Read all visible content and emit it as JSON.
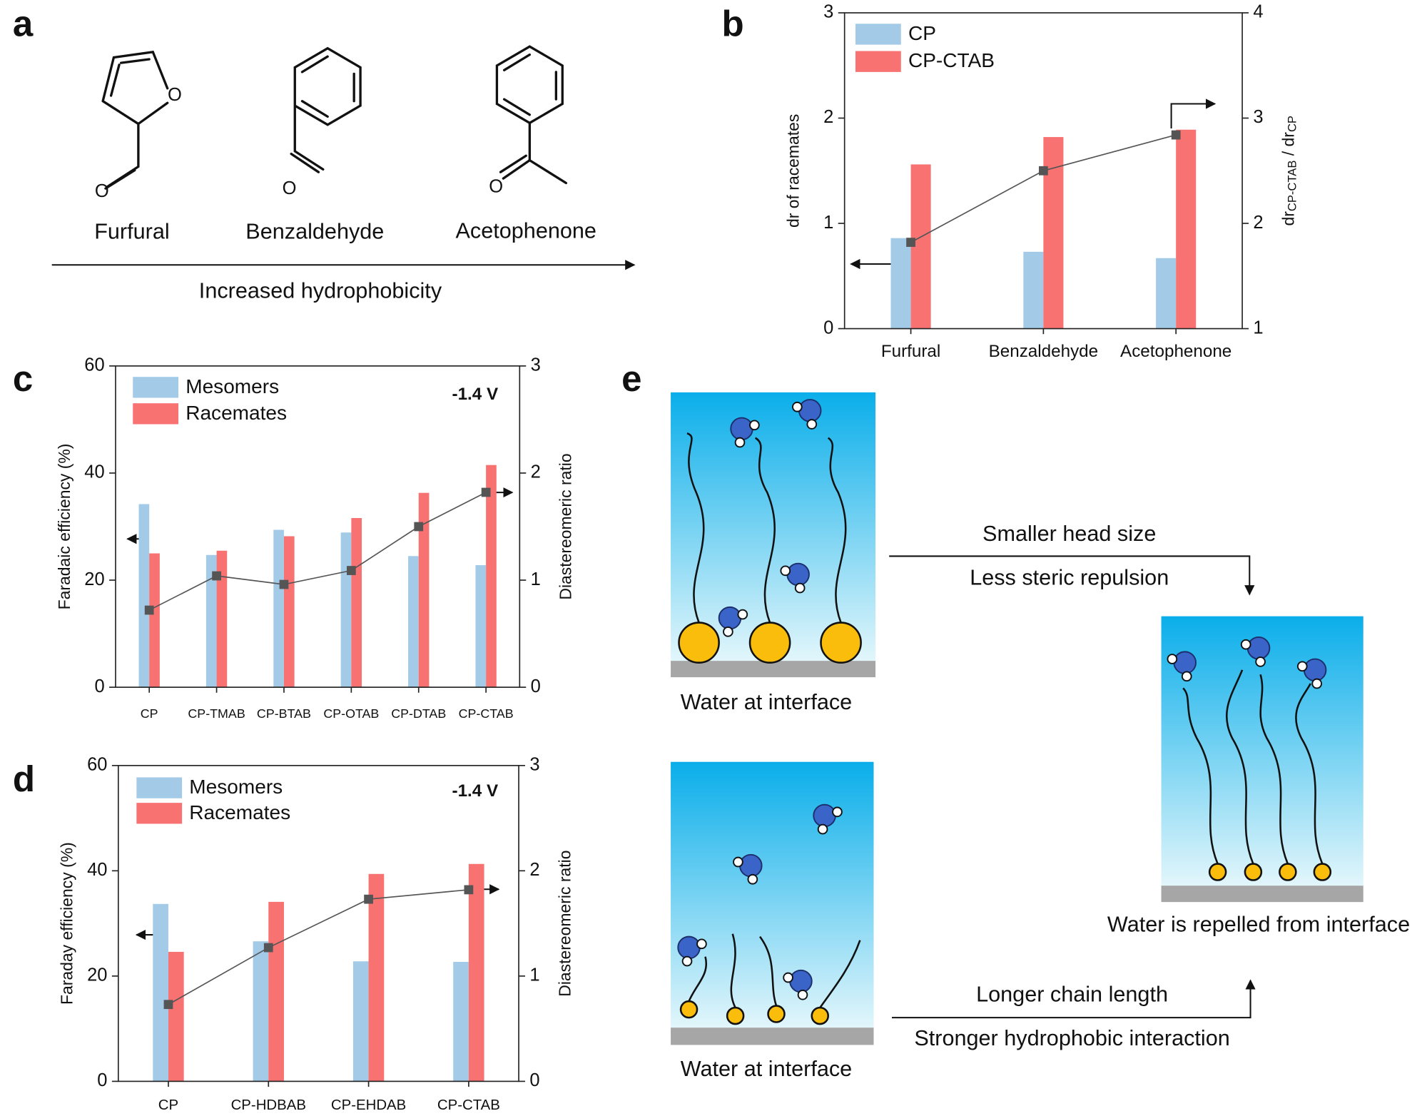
{
  "panel_labels": [
    "a",
    "b",
    "c",
    "d",
    "e"
  ],
  "panel_a": {
    "molecules": [
      "Furfural",
      "Benzaldehyde",
      "Acetophenone"
    ],
    "atom_label": "O",
    "trend": "Increased hydrophobicity"
  },
  "chart_data": [
    {
      "type": "bar",
      "categories": [
        "Furfural",
        "Benzaldehyde",
        "Acetophenone"
      ],
      "series": [
        {
          "name": "CP",
          "color": "#a3cbe8",
          "values": [
            0.86,
            0.73,
            0.67
          ]
        },
        {
          "name": "CP-CTAB",
          "color": "#f87272",
          "values": [
            1.56,
            1.82,
            1.89
          ]
        }
      ],
      "y2_series": {
        "axis": "y2",
        "color": "#555555",
        "values": [
          1.82,
          2.5,
          2.84
        ]
      },
      "ylabel": "dr of racemates",
      "y2label": [
        "dr",
        "CP-CTAB",
        " / dr",
        "CP"
      ],
      "ylim": [
        0,
        3
      ],
      "yticks": [
        0,
        1,
        2,
        3
      ],
      "y2lim": [
        1,
        4
      ],
      "y2ticks": [
        1,
        2,
        3,
        4
      ]
    },
    {
      "type": "bar",
      "categories": [
        "CP",
        "CP-TMAB",
        "CP-BTAB",
        "CP-OTAB",
        "CP-DTAB",
        "CP-CTAB"
      ],
      "series": [
        {
          "name": "Mesomers",
          "color": "#a3cbe8",
          "values": [
            34.2,
            24.7,
            29.4,
            28.9,
            24.5,
            22.8
          ]
        },
        {
          "name": "Racemates",
          "color": "#f87272",
          "values": [
            25,
            25.5,
            28.2,
            31.6,
            36.3,
            41.5
          ]
        }
      ],
      "y2_series": {
        "axis": "y2",
        "color": "#555555",
        "values": [
          0.72,
          1.04,
          0.96,
          1.09,
          1.5,
          1.82
        ]
      },
      "ylabel": "Faradaic efficiency (%)",
      "y2label": [
        "Diastereomeric ratio"
      ],
      "annotation": "-1.4 V",
      "ylim": [
        0,
        60
      ],
      "yticks": [
        0,
        20,
        40,
        60
      ],
      "y2lim": [
        0,
        3
      ],
      "y2ticks": [
        0,
        1,
        2,
        3
      ]
    },
    {
      "type": "bar",
      "categories": [
        "CP",
        "CP-HDBAB",
        "CP-EHDAB",
        "CP-CTAB"
      ],
      "series": [
        {
          "name": "Mesomers",
          "color": "#a3cbe8",
          "values": [
            33.7,
            26.6,
            22.8,
            22.7
          ]
        },
        {
          "name": "Racemates",
          "color": "#f87272",
          "values": [
            24.6,
            34.1,
            39.4,
            41.3
          ]
        }
      ],
      "y2_series": {
        "axis": "y2",
        "color": "#555555",
        "values": [
          0.73,
          1.27,
          1.73,
          1.82
        ]
      },
      "ylabel": "Faraday efficiency (%)",
      "y2label": [
        "Diastereomeric ratio"
      ],
      "annotation": "-1.4 V",
      "ylim": [
        0,
        60
      ],
      "yticks": [
        0,
        20,
        40,
        60
      ],
      "y2lim": [
        0,
        3
      ],
      "y2ticks": [
        0,
        1,
        2,
        3
      ]
    }
  ],
  "panel_e": {
    "state_label": "Water at interface",
    "path1": [
      "Smaller head size",
      "Less steric repulsion"
    ],
    "path2": [
      "Longer chain length",
      "Stronger hydrophobic interaction"
    ],
    "result": "Water is repelled from interface"
  }
}
